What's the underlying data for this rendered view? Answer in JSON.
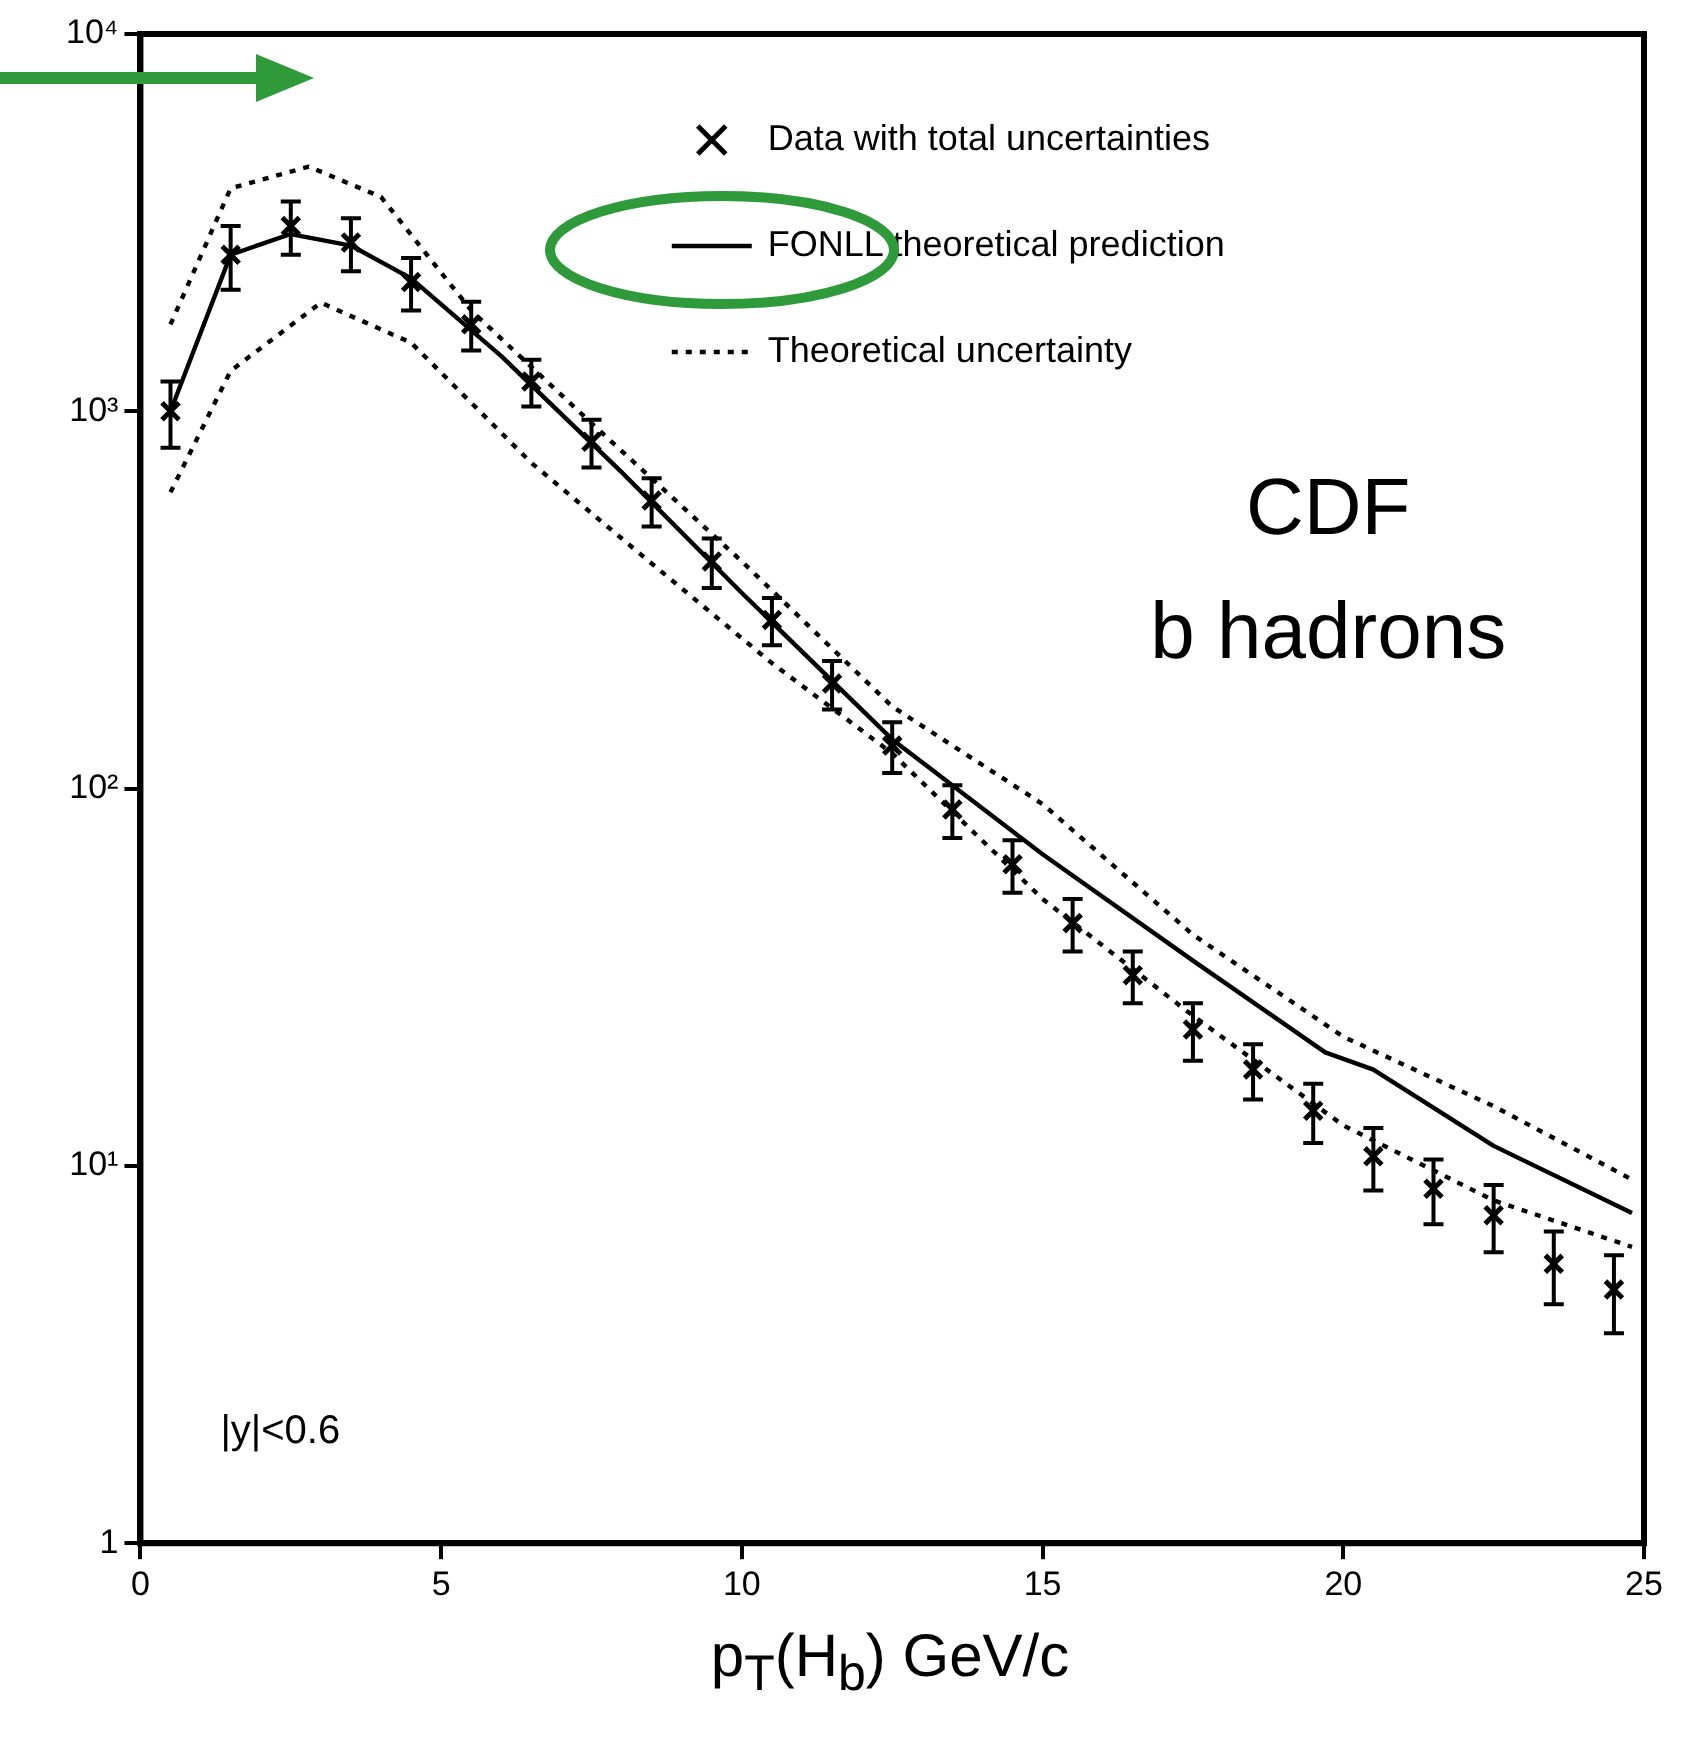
{
  "chart_data": {
    "type": "scatter",
    "xlabel": "p$_{T}$(H$_{b}$) GeV/c",
    "xlim": [
      0,
      25
    ],
    "xticks": [
      0,
      5,
      10,
      15,
      20,
      25
    ],
    "ylim": [
      1,
      10000
    ],
    "yticks": [
      1,
      {
        "value": 10,
        "label": "10¹"
      },
      {
        "value": 100,
        "label": "10²"
      },
      {
        "value": 1000,
        "label": "10³"
      },
      {
        "value": 10000,
        "label": "10⁴"
      }
    ],
    "log": "y",
    "grid": false,
    "legend": "top right",
    "annotations": [
      "CDF\nb hadrons",
      "|y|<0.6"
    ],
    "series": [
      {
        "name": "Data with total uncertainties",
        "type": "scatter",
        "marker": "cross",
        "color": "#000000",
        "x": [
          0.5,
          1.5,
          2.5,
          3.5,
          4.5,
          5.5,
          6.5,
          7.5,
          8.5,
          9.5,
          10.5,
          11.5,
          12.5,
          13.5,
          14.5,
          15.5,
          16.5,
          17.5,
          18.5,
          19.5,
          20.5,
          21.5,
          22.5,
          23.5,
          24.5
        ],
        "values": [
          1000,
          2600,
          3100,
          2800,
          2200,
          1700,
          1200,
          830,
          580,
          400,
          280,
          190,
          130,
          88,
          63,
          44,
          32,
          23,
          18,
          14,
          10.6,
          8.7,
          7.4,
          5.5,
          4.7
        ],
        "errors": [
          200,
          500,
          500,
          450,
          350,
          250,
          170,
          120,
          85,
          60,
          40,
          28,
          20,
          14,
          10,
          7,
          5,
          4,
          3,
          2.5,
          2,
          1.7,
          1.5,
          1.2,
          1.1
        ]
      },
      {
        "name": "FONLL theoretical prediction",
        "type": "line",
        "line_style": "solid",
        "color": "#000000",
        "x": [
          0.5,
          1.5,
          2.5,
          3.5,
          4.5,
          6,
          8,
          10,
          12.5,
          15,
          17.5,
          19.7,
          20.5,
          22.5,
          24.8
        ],
        "values": [
          1000,
          2600,
          2950,
          2750,
          2250,
          1400,
          690,
          330,
          135,
          67,
          35,
          20,
          18,
          11.3,
          7.5
        ]
      },
      {
        "name": "Theoretical uncertainty",
        "type": "line",
        "line_style": "dotted",
        "color": "#000000",
        "x": [
          0.5,
          1.5,
          2.8,
          4,
          5.5,
          7.5,
          10,
          12.5,
          15,
          17.5,
          20,
          22.5,
          24.8
        ],
        "values": [
          1700,
          3900,
          4450,
          3700,
          1850,
          930,
          400,
          165,
          91,
          41,
          22,
          14.4,
          9.2
        ]
      },
      {
        "type": "line",
        "line_style": "dotted",
        "color": "#000000",
        "x": [
          0.5,
          1.5,
          3,
          4.5,
          6.5,
          8.5,
          10.5,
          12.5,
          15,
          17.5,
          20,
          22.5,
          24.8
        ],
        "values": [
          610,
          1280,
          1940,
          1520,
          730,
          395,
          215,
          124,
          51,
          25,
          12.8,
          8.1,
          6.1
        ]
      }
    ]
  }
}
